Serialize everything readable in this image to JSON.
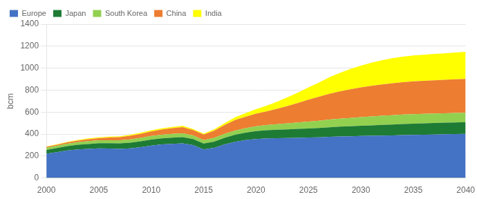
{
  "chart_data": {
    "type": "area",
    "stacked": true,
    "ylabel": "bcm",
    "x": [
      2000,
      2001,
      2002,
      2003,
      2004,
      2005,
      2006,
      2007,
      2008,
      2009,
      2010,
      2011,
      2012,
      2013,
      2014,
      2015,
      2016,
      2017,
      2018,
      2019,
      2020,
      2021,
      2022,
      2023,
      2024,
      2025,
      2026,
      2027,
      2028,
      2029,
      2030,
      2031,
      2032,
      2033,
      2034,
      2035,
      2036,
      2037,
      2038,
      2039,
      2040
    ],
    "series": [
      {
        "name": "Europe",
        "color": "#4472c4",
        "values": [
          220,
          235,
          250,
          260,
          265,
          270,
          268,
          265,
          270,
          280,
          295,
          305,
          310,
          315,
          300,
          260,
          275,
          305,
          330,
          345,
          355,
          360,
          362,
          364,
          366,
          368,
          370,
          375,
          378,
          380,
          382,
          384,
          386,
          388,
          390,
          392,
          394,
          396,
          398,
          400,
          402
        ]
      },
      {
        "name": "Japan",
        "color": "#1e7b34",
        "values": [
          35,
          37,
          40,
          42,
          44,
          46,
          48,
          50,
          52,
          54,
          55,
          56,
          57,
          57,
          55,
          53,
          56,
          60,
          64,
          68,
          72,
          75,
          77,
          79,
          81,
          83,
          85,
          87,
          89,
          91,
          93,
          95,
          97,
          99,
          101,
          103,
          104,
          105,
          105,
          106,
          106
        ]
      },
      {
        "name": "South Korea",
        "color": "#92d050",
        "values": [
          20,
          21,
          22,
          24,
          26,
          27,
          28,
          28,
          30,
          31,
          32,
          33,
          34,
          34,
          33,
          32,
          34,
          36,
          38,
          40,
          43,
          46,
          50,
          54,
          58,
          62,
          66,
          70,
          73,
          76,
          79,
          82,
          84,
          85,
          86,
          86,
          86,
          86,
          86,
          86,
          86
        ]
      },
      {
        "name": "China",
        "color": "#ed7d31",
        "values": [
          8,
          10,
          12,
          15,
          18,
          20,
          24,
          28,
          32,
          37,
          42,
          47,
          52,
          57,
          48,
          50,
          65,
          80,
          95,
          105,
          115,
          125,
          140,
          158,
          178,
          200,
          218,
          235,
          248,
          260,
          270,
          278,
          285,
          290,
          295,
          298,
          300,
          302,
          304,
          306,
          308
        ]
      },
      {
        "name": "India",
        "color": "#ffff00",
        "values": [
          4,
          5,
          5,
          6,
          7,
          7,
          8,
          9,
          10,
          10,
          11,
          11,
          12,
          12,
          10,
          10,
          12,
          18,
          25,
          32,
          42,
          52,
          65,
          80,
          95,
          112,
          130,
          150,
          168,
          185,
          198,
          210,
          220,
          228,
          233,
          236,
          238,
          240,
          242,
          244,
          246
        ]
      }
    ],
    "xlim": [
      2000,
      2040
    ],
    "ylim": [
      0,
      1400
    ],
    "xticks": [
      2000,
      2005,
      2010,
      2015,
      2020,
      2025,
      2030,
      2035,
      2040
    ],
    "yticks": [
      0,
      200,
      400,
      600,
      800,
      1000,
      1200,
      1400
    ],
    "grid": true,
    "legend": "upper left"
  }
}
